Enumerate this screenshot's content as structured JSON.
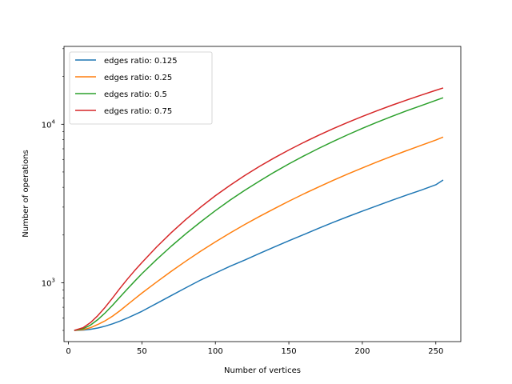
{
  "chart_data": {
    "type": "line",
    "title": "",
    "xlabel": "Number of vertices",
    "ylabel": "Number of operations",
    "xlim": [
      -3,
      267
    ],
    "ylim": [
      425,
      31000
    ],
    "yscale": "log",
    "x_ticks": [
      0,
      50,
      100,
      150,
      200,
      250
    ],
    "y_ticks": [
      {
        "value": 1000,
        "base": "10",
        "exp": "3"
      },
      {
        "value": 10000,
        "base": "10",
        "exp": "4"
      }
    ],
    "grid": false,
    "legend_position": "top-left",
    "x": [
      4,
      10,
      15,
      20,
      25,
      30,
      35,
      40,
      45,
      50,
      60,
      70,
      80,
      90,
      100,
      110,
      120,
      130,
      140,
      150,
      160,
      170,
      180,
      190,
      200,
      210,
      220,
      230,
      240,
      250,
      255
    ],
    "series": [
      {
        "name": "edges ratio: 0.125",
        "color": "#1f77b4",
        "values": [
          500,
          502,
          508,
          518,
          532,
          550,
          572,
          598,
          628,
          660,
          740,
          830,
          930,
          1040,
          1150,
          1270,
          1390,
          1530,
          1680,
          1840,
          2010,
          2200,
          2400,
          2610,
          2830,
          3060,
          3310,
          3570,
          3840,
          4150,
          4450
        ]
      },
      {
        "name": "edges ratio: 0.25",
        "color": "#ff7f0e",
        "values": [
          500,
          505,
          520,
          545,
          575,
          615,
          665,
          725,
          790,
          860,
          1010,
          1180,
          1370,
          1580,
          1810,
          2060,
          2330,
          2620,
          2930,
          3270,
          3630,
          4010,
          4420,
          4850,
          5300,
          5780,
          6280,
          6810,
          7360,
          7950,
          8300
        ]
      },
      {
        "name": "edges ratio: 0.5",
        "color": "#2ca02c",
        "values": [
          500,
          512,
          540,
          585,
          645,
          720,
          810,
          910,
          1020,
          1140,
          1400,
          1700,
          2040,
          2420,
          2850,
          3320,
          3830,
          4380,
          4980,
          5620,
          6300,
          7020,
          7780,
          8580,
          9420,
          10300,
          11200,
          12150,
          13100,
          14150,
          14700
        ]
      },
      {
        "name": "edges ratio: 0.75",
        "color": "#d62728",
        "values": [
          500,
          520,
          560,
          620,
          700,
          800,
          920,
          1050,
          1190,
          1340,
          1680,
          2070,
          2510,
          3000,
          3540,
          4120,
          4750,
          5420,
          6130,
          6880,
          7670,
          8500,
          9370,
          10270,
          11200,
          12170,
          13170,
          14200,
          15270,
          16380,
          16950
        ]
      }
    ]
  }
}
